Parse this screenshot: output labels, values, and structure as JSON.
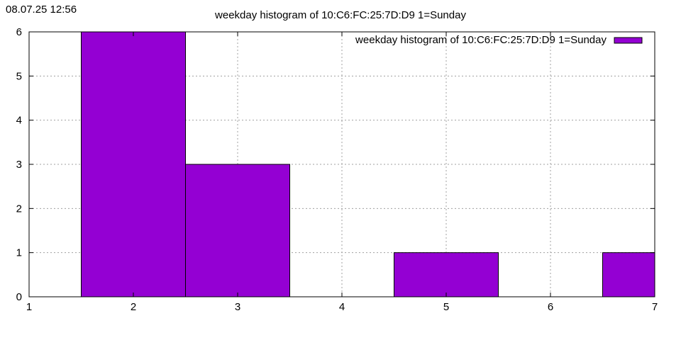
{
  "timestamp": "08.07.25 12:56",
  "colors": {
    "bar": "#9400d3",
    "grid": "#a0a0a0",
    "axis": "#000000"
  },
  "chart_data": {
    "type": "bar",
    "title": "weekday histogram of 10:C6:FC:25:7D:D9 1=Sunday",
    "xlabel": "",
    "ylabel": "",
    "xlim": [
      1,
      7
    ],
    "ylim": [
      0,
      6
    ],
    "x_ticks": [
      "1",
      "2",
      "3",
      "4",
      "5",
      "6",
      "7"
    ],
    "y_ticks": [
      "0",
      "1",
      "2",
      "3",
      "4",
      "5",
      "6"
    ],
    "bar_width": 1,
    "grid": true,
    "legend": "top-right",
    "series": [
      {
        "name": "weekday histogram of 10:C6:FC:25:7D:D9 1=Sunday",
        "x": [
          2,
          3,
          5,
          7
        ],
        "values": [
          6,
          3,
          1,
          1
        ]
      }
    ]
  }
}
